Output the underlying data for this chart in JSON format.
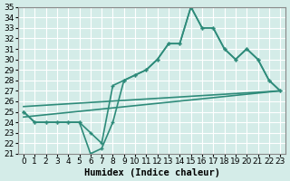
{
  "xlabel": "Humidex (Indice chaleur)",
  "ylabel": "",
  "x": [
    0,
    1,
    2,
    3,
    4,
    5,
    6,
    7,
    8,
    9,
    10,
    11,
    12,
    13,
    14,
    15,
    16,
    17,
    18,
    19,
    20,
    21,
    22,
    23
  ],
  "line1": [
    25,
    24,
    24,
    24,
    24,
    24,
    23,
    22,
    27.5,
    28,
    28.5,
    29,
    30,
    31.5,
    31.5,
    35,
    33,
    33,
    31,
    30,
    31,
    30,
    28,
    27
  ],
  "line2": [
    25,
    24,
    24,
    24,
    24,
    24,
    21,
    21.5,
    24,
    28,
    28.5,
    29,
    30,
    31.5,
    31.5,
    35,
    33,
    33,
    31,
    30,
    31,
    30,
    28,
    27
  ],
  "line3_x": [
    0,
    23
  ],
  "line3_y": [
    25.5,
    27
  ],
  "line4_x": [
    0,
    23
  ],
  "line4_y": [
    24.5,
    27
  ],
  "ylim": [
    21,
    35
  ],
  "xlim": [
    -0.5,
    23.5
  ],
  "yticks": [
    21,
    22,
    23,
    24,
    25,
    26,
    27,
    28,
    29,
    30,
    31,
    32,
    33,
    34,
    35
  ],
  "xticks": [
    0,
    1,
    2,
    3,
    4,
    5,
    6,
    7,
    8,
    9,
    10,
    11,
    12,
    13,
    14,
    15,
    16,
    17,
    18,
    19,
    20,
    21,
    22,
    23
  ],
  "line_color": "#2e8b7a",
  "bg_color": "#d4ece8",
  "grid_color": "#ffffff",
  "marker": "+",
  "linewidth": 1.2,
  "fontsize": 7
}
